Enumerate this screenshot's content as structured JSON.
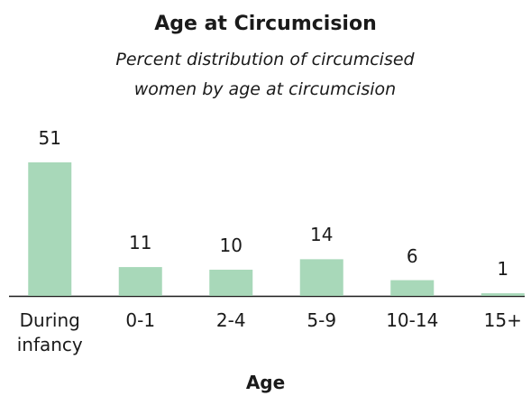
{
  "chart_data": {
    "type": "bar",
    "title": "Age at Circumcision",
    "subtitle": "Percent distribution of circumcised women by age at circumcision",
    "xlabel": "Age",
    "categories": [
      "During infancy",
      "0-1",
      "2-4",
      "5-9",
      "10-14",
      "15+"
    ],
    "values": [
      51,
      11,
      10,
      14,
      6,
      1
    ],
    "color": "#a8d8b9"
  }
}
